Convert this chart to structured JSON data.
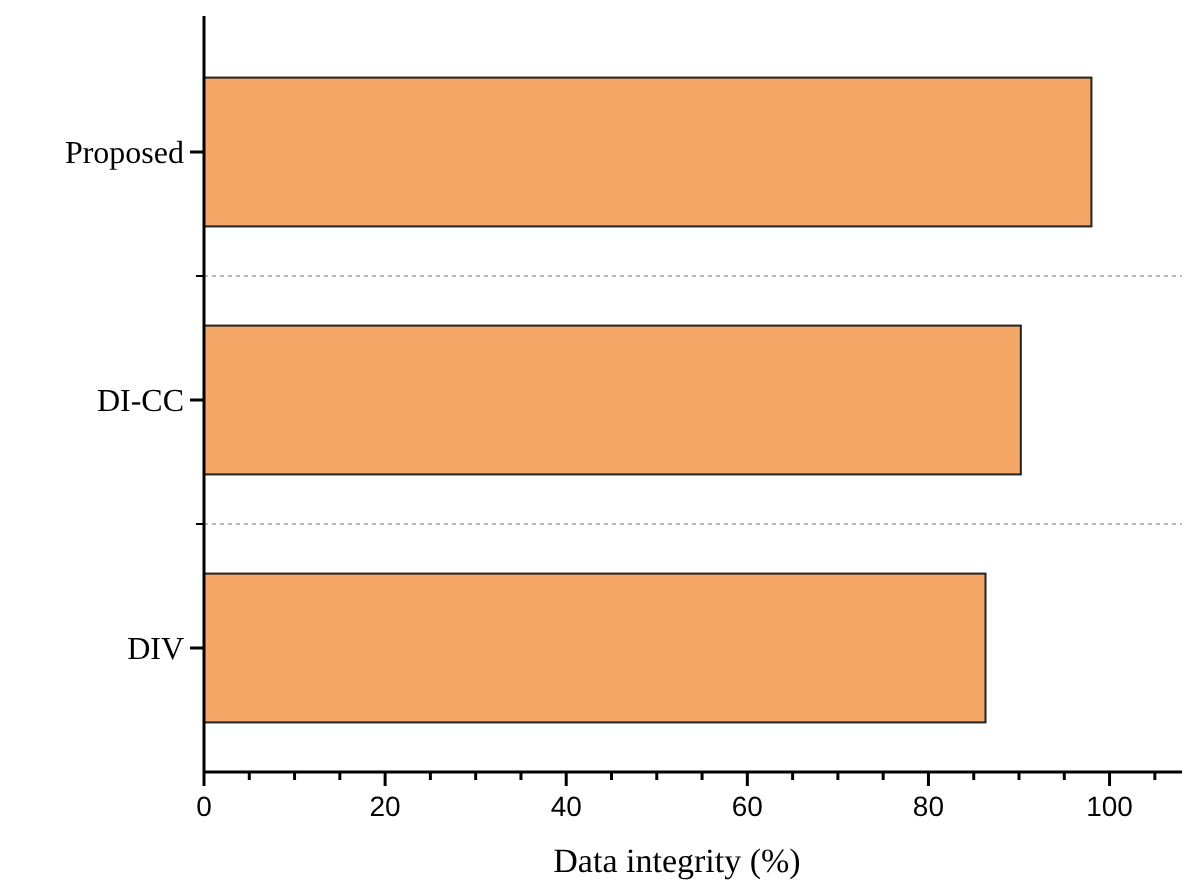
{
  "chart_data": {
    "type": "bar",
    "orientation": "horizontal",
    "xlabel": "Data integrity (%)",
    "categories": [
      "Proposed",
      "DI-CC",
      "DIV"
    ],
    "values": [
      98,
      90.2,
      86.3
    ],
    "color": "#f4a767",
    "xlim": [
      0,
      108
    ],
    "xticks": [
      0,
      {
        "value": 5,
        "label": null
      },
      20,
      {
        "value": 10,
        "label": null
      },
      {
        "value": 15,
        "label": null
      },
      {
        "value": 25,
        "label": null
      },
      {
        "value": 30,
        "label": null
      },
      {
        "value": 35,
        "label": null
      },
      40,
      {
        "value": 45,
        "label": null
      },
      {
        "value": 50,
        "label": null
      },
      {
        "value": 55,
        "label": null
      },
      60,
      {
        "value": 65,
        "label": null
      },
      {
        "value": 70,
        "label": null
      },
      {
        "value": 75,
        "label": null
      },
      80,
      {
        "value": 85,
        "label": null
      },
      {
        "value": 90,
        "label": null
      },
      {
        "value": 95,
        "label": null
      },
      100,
      {
        "value": 105,
        "label": null
      }
    ],
    "grid": "y"
  }
}
